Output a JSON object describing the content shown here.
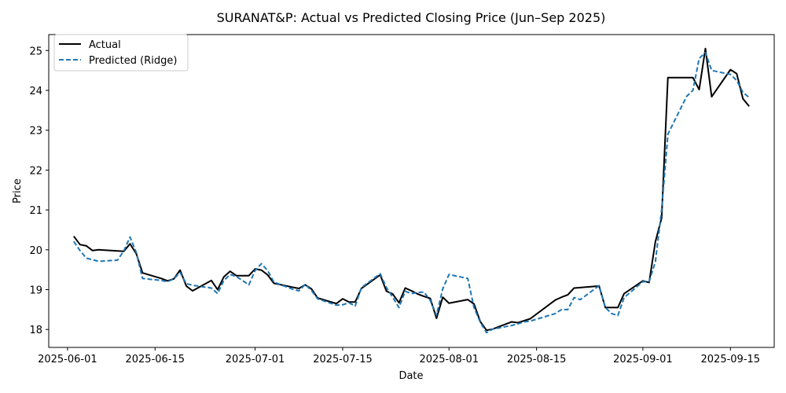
{
  "chart_data": {
    "type": "line",
    "title": "SURANAT&P: Actual vs Predicted Closing Price (Jun–Sep 2025)",
    "xlabel": "Date",
    "ylabel": "Price",
    "xlim": [
      "2025-05-29",
      "2025-09-22"
    ],
    "ylim": [
      17.55,
      25.4
    ],
    "x_ticks": [
      "2025-06-01",
      "2025-06-15",
      "2025-07-01",
      "2025-07-15",
      "2025-08-01",
      "2025-08-15",
      "2025-09-01",
      "2025-09-15"
    ],
    "y_ticks": [
      18,
      19,
      20,
      21,
      22,
      23,
      24,
      25
    ],
    "grid": false,
    "legend": "upper-left",
    "series": [
      {
        "name": "Actual",
        "color": "#000000",
        "dash": "solid",
        "points": [
          [
            "2025-06-02",
            20.34
          ],
          [
            "2025-06-03",
            20.13
          ],
          [
            "2025-06-04",
            20.1
          ],
          [
            "2025-06-05",
            19.98
          ],
          [
            "2025-06-06",
            20.0
          ],
          [
            "2025-06-09",
            19.97
          ],
          [
            "2025-06-10",
            19.96
          ],
          [
            "2025-06-11",
            20.15
          ],
          [
            "2025-06-12",
            19.9
          ],
          [
            "2025-06-13",
            19.42
          ],
          [
            "2025-06-16",
            19.28
          ],
          [
            "2025-06-17",
            19.22
          ],
          [
            "2025-06-18",
            19.27
          ],
          [
            "2025-06-19",
            19.49
          ],
          [
            "2025-06-20",
            19.09
          ],
          [
            "2025-06-21",
            18.97
          ],
          [
            "2025-06-24",
            19.23
          ],
          [
            "2025-06-25",
            19.0
          ],
          [
            "2025-06-26",
            19.32
          ],
          [
            "2025-06-27",
            19.46
          ],
          [
            "2025-06-28",
            19.35
          ],
          [
            "2025-06-30",
            19.35
          ],
          [
            "2025-07-01",
            19.52
          ],
          [
            "2025-07-02",
            19.49
          ],
          [
            "2025-07-03",
            19.37
          ],
          [
            "2025-07-04",
            19.16
          ],
          [
            "2025-07-07",
            19.06
          ],
          [
            "2025-07-08",
            19.03
          ],
          [
            "2025-07-09",
            19.12
          ],
          [
            "2025-07-10",
            19.02
          ],
          [
            "2025-07-11",
            18.79
          ],
          [
            "2025-07-14",
            18.65
          ],
          [
            "2025-07-15",
            18.77
          ],
          [
            "2025-07-16",
            18.69
          ],
          [
            "2025-07-17",
            18.69
          ],
          [
            "2025-07-18",
            19.03
          ],
          [
            "2025-07-21",
            19.37
          ],
          [
            "2025-07-22",
            18.96
          ],
          [
            "2025-07-23",
            18.89
          ],
          [
            "2025-07-24",
            18.67
          ],
          [
            "2025-07-25",
            19.04
          ],
          [
            "2025-07-26",
            18.97
          ],
          [
            "2025-07-27",
            18.89
          ],
          [
            "2025-07-28",
            18.83
          ],
          [
            "2025-07-29",
            18.78
          ],
          [
            "2025-07-30",
            18.28
          ],
          [
            "2025-07-31",
            18.81
          ],
          [
            "2025-08-01",
            18.66
          ],
          [
            "2025-08-04",
            18.75
          ],
          [
            "2025-08-05",
            18.64
          ],
          [
            "2025-08-06",
            18.2
          ],
          [
            "2025-08-07",
            17.98
          ],
          [
            "2025-08-08",
            18.01
          ],
          [
            "2025-08-11",
            18.19
          ],
          [
            "2025-08-12",
            18.17
          ],
          [
            "2025-08-13",
            18.22
          ],
          [
            "2025-08-14",
            18.27
          ],
          [
            "2025-08-18",
            18.74
          ],
          [
            "2025-08-19",
            18.81
          ],
          [
            "2025-08-20",
            18.87
          ],
          [
            "2025-08-21",
            19.04
          ],
          [
            "2025-08-25",
            19.09
          ],
          [
            "2025-08-26",
            18.55
          ],
          [
            "2025-08-28",
            18.55
          ],
          [
            "2025-08-29",
            18.9
          ],
          [
            "2025-09-01",
            19.22
          ],
          [
            "2025-09-02",
            19.18
          ],
          [
            "2025-09-03",
            20.2
          ],
          [
            "2025-09-04",
            20.8
          ],
          [
            "2025-09-05",
            24.32
          ],
          [
            "2025-09-09",
            24.32
          ],
          [
            "2025-09-10",
            24.02
          ],
          [
            "2025-09-11",
            25.05
          ],
          [
            "2025-09-12",
            23.84
          ],
          [
            "2025-09-15",
            24.52
          ],
          [
            "2025-09-16",
            24.42
          ],
          [
            "2025-09-17",
            23.79
          ],
          [
            "2025-09-18",
            23.6
          ]
        ]
      },
      {
        "name": "Predicted (Ridge)",
        "color": "#1f77b4",
        "dash": "dashed",
        "points": [
          [
            "2025-06-02",
            20.21
          ],
          [
            "2025-06-03",
            19.98
          ],
          [
            "2025-06-04",
            19.79
          ],
          [
            "2025-06-05",
            19.75
          ],
          [
            "2025-06-06",
            19.71
          ],
          [
            "2025-06-09",
            19.74
          ],
          [
            "2025-06-10",
            19.97
          ],
          [
            "2025-06-11",
            20.32
          ],
          [
            "2025-06-12",
            19.93
          ],
          [
            "2025-06-13",
            19.28
          ],
          [
            "2025-06-16",
            19.23
          ],
          [
            "2025-06-17",
            19.2
          ],
          [
            "2025-06-18",
            19.27
          ],
          [
            "2025-06-19",
            19.43
          ],
          [
            "2025-06-20",
            19.15
          ],
          [
            "2025-06-21",
            19.11
          ],
          [
            "2025-06-24",
            19.04
          ],
          [
            "2025-06-25",
            18.9
          ],
          [
            "2025-06-26",
            19.23
          ],
          [
            "2025-06-27",
            19.38
          ],
          [
            "2025-06-28",
            19.33
          ],
          [
            "2025-06-30",
            19.12
          ],
          [
            "2025-07-01",
            19.48
          ],
          [
            "2025-07-02",
            19.65
          ],
          [
            "2025-07-03",
            19.48
          ],
          [
            "2025-07-04",
            19.19
          ],
          [
            "2025-07-07",
            19.01
          ],
          [
            "2025-07-08",
            18.97
          ],
          [
            "2025-07-09",
            19.13
          ],
          [
            "2025-07-10",
            18.98
          ],
          [
            "2025-07-11",
            18.77
          ],
          [
            "2025-07-14",
            18.61
          ],
          [
            "2025-07-15",
            18.62
          ],
          [
            "2025-07-16",
            18.67
          ],
          [
            "2025-07-17",
            18.59
          ],
          [
            "2025-07-18",
            19.05
          ],
          [
            "2025-07-21",
            19.4
          ],
          [
            "2025-07-22",
            19.05
          ],
          [
            "2025-07-23",
            18.81
          ],
          [
            "2025-07-24",
            18.55
          ],
          [
            "2025-07-25",
            18.96
          ],
          [
            "2025-07-26",
            18.9
          ],
          [
            "2025-07-27",
            18.93
          ],
          [
            "2025-07-28",
            18.94
          ],
          [
            "2025-07-29",
            18.73
          ],
          [
            "2025-07-30",
            18.36
          ],
          [
            "2025-07-31",
            19.02
          ],
          [
            "2025-08-01",
            19.38
          ],
          [
            "2025-08-04",
            19.28
          ],
          [
            "2025-08-05",
            18.55
          ],
          [
            "2025-08-06",
            18.18
          ],
          [
            "2025-08-07",
            17.92
          ],
          [
            "2025-08-08",
            18.01
          ],
          [
            "2025-08-11",
            18.1
          ],
          [
            "2025-08-12",
            18.14
          ],
          [
            "2025-08-13",
            18.19
          ],
          [
            "2025-08-14",
            18.21
          ],
          [
            "2025-08-18",
            18.4
          ],
          [
            "2025-08-19",
            18.5
          ],
          [
            "2025-08-20",
            18.5
          ],
          [
            "2025-08-21",
            18.8
          ],
          [
            "2025-08-22",
            18.75
          ],
          [
            "2025-08-25",
            19.1
          ],
          [
            "2025-08-26",
            18.55
          ],
          [
            "2025-08-27",
            18.4
          ],
          [
            "2025-08-28",
            18.35
          ],
          [
            "2025-08-29",
            18.8
          ],
          [
            "2025-09-01",
            19.2
          ],
          [
            "2025-09-02",
            19.2
          ],
          [
            "2025-09-03",
            19.7
          ],
          [
            "2025-09-04",
            21.0
          ],
          [
            "2025-09-05",
            22.9
          ],
          [
            "2025-09-08",
            23.85
          ],
          [
            "2025-09-09",
            24.0
          ],
          [
            "2025-09-10",
            24.8
          ],
          [
            "2025-09-11",
            24.95
          ],
          [
            "2025-09-12",
            24.5
          ],
          [
            "2025-09-15",
            24.4
          ],
          [
            "2025-09-16",
            24.25
          ],
          [
            "2025-09-17",
            23.95
          ],
          [
            "2025-09-18",
            23.82
          ]
        ]
      }
    ]
  }
}
